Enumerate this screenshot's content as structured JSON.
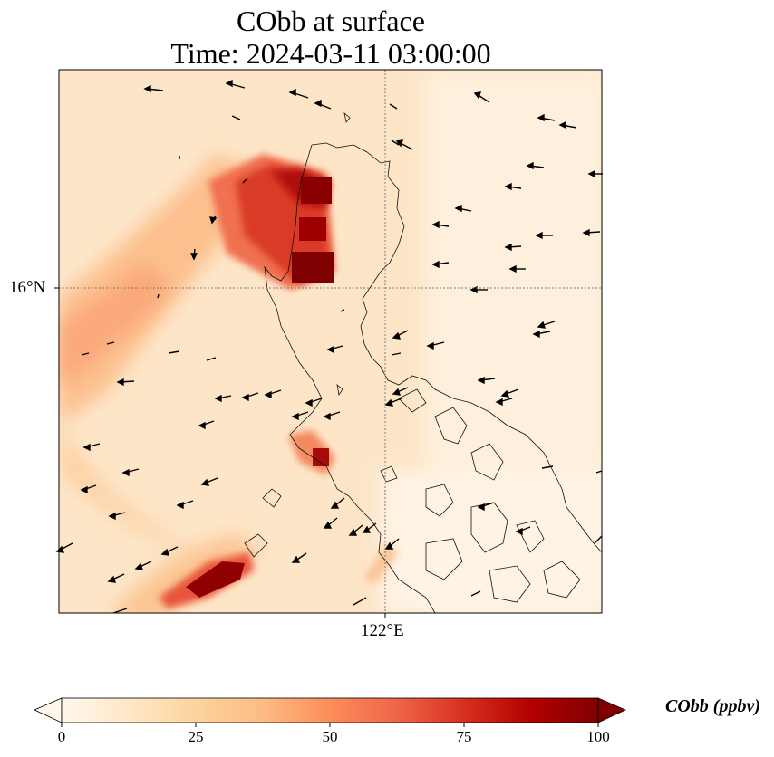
{
  "title": {
    "line1": "CObb at surface",
    "line2": "Time: 2024-03-11 03:00:00"
  },
  "axes": {
    "lat_label": "16°N",
    "lon_label": "122°E"
  },
  "colorbar": {
    "label": "CObb (ppbv)",
    "ticks": [
      "0",
      "25",
      "50",
      "75",
      "100"
    ],
    "min": 0,
    "max": 100,
    "extend": "both",
    "colormap": [
      "#fff7ec",
      "#fee8c8",
      "#fdd49e",
      "#fdbb84",
      "#fc8d59",
      "#ef6548",
      "#d7301f",
      "#b30000",
      "#7f0000"
    ]
  },
  "map": {
    "background_color": "#fde3c2",
    "gridline_color": "#7a7a7a",
    "gridlines": "dotted"
  }
}
